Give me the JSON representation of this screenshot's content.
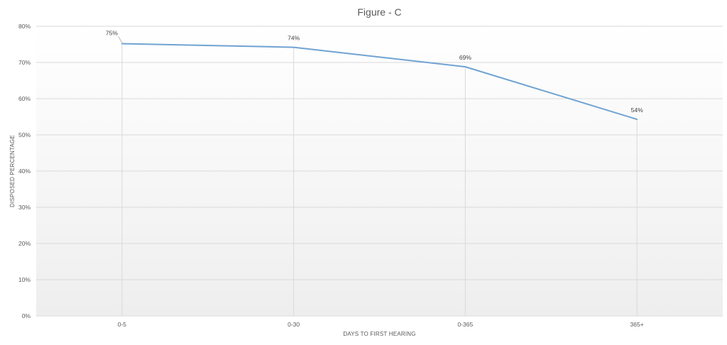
{
  "chart_data": {
    "type": "line",
    "title": "Figure - C",
    "xlabel": "DAYS TO FIRST HEARING",
    "ylabel": "DISPOSED PERCENTAGE",
    "categories": [
      "0-5",
      "0-30",
      "0-365",
      "365+"
    ],
    "series": [
      {
        "values": [
          75.2,
          74.2,
          68.8,
          54.3
        ],
        "labels": [
          "75%",
          "74%",
          "69%",
          "54%"
        ],
        "color": "#6fa3d2"
      }
    ],
    "ylim": [
      0,
      80
    ],
    "yticks": [
      "0%",
      "10%",
      "20%",
      "30%",
      "40%",
      "50%",
      "60%",
      "70%",
      "80%"
    ],
    "grid": true,
    "legend": "none"
  }
}
